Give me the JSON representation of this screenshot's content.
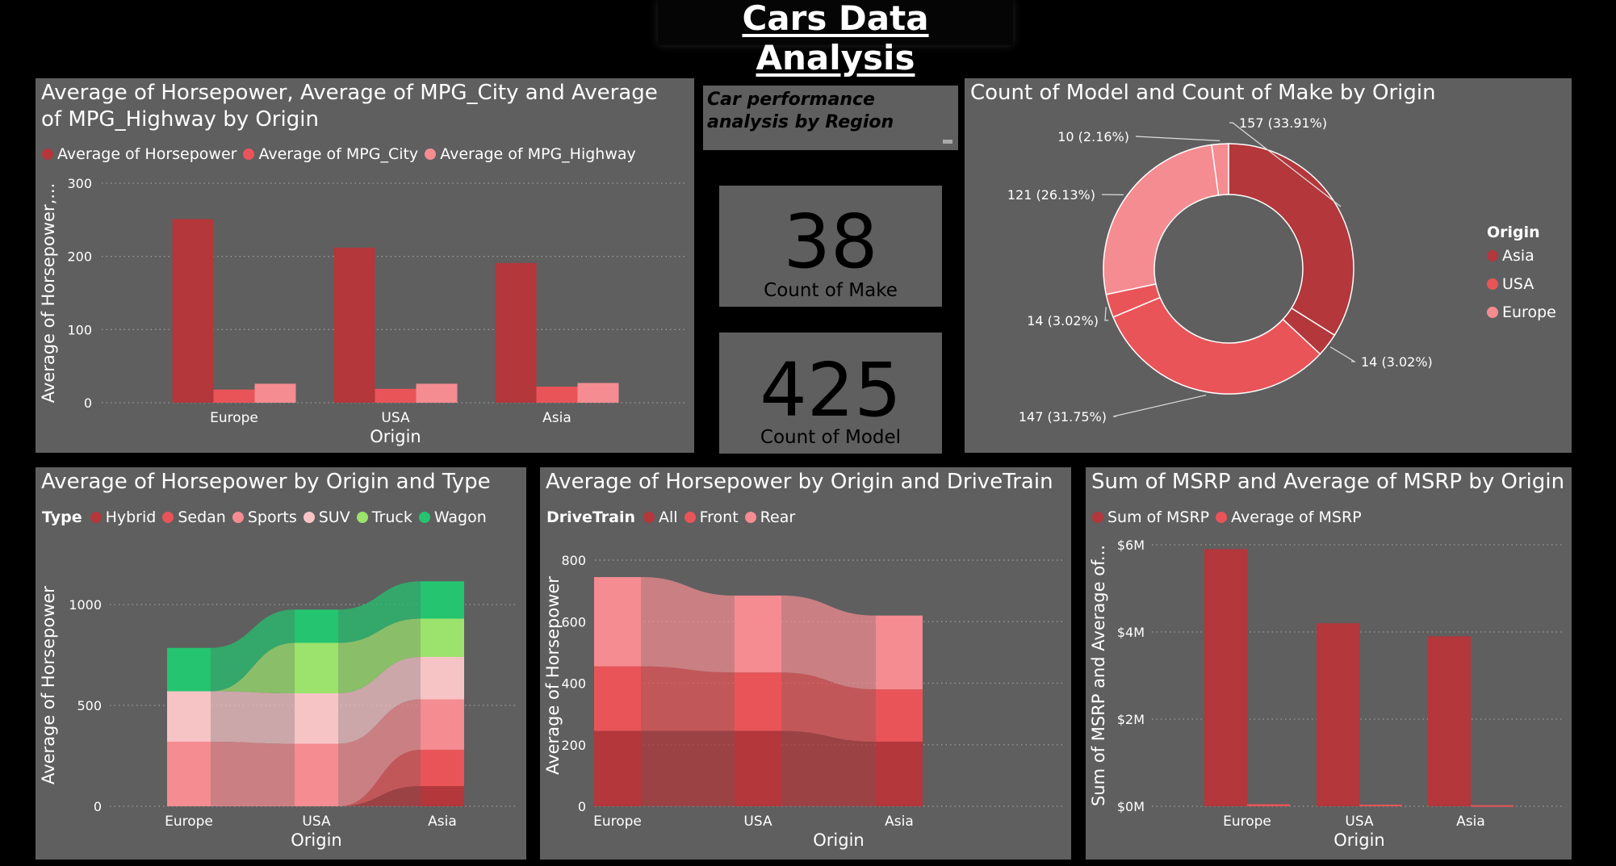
{
  "page_title": "Cars Data Analysis",
  "subtitle_text": "Car performance analysis by Region",
  "colors": {
    "dark_red": "#b3373b",
    "red": "#e95458",
    "pink": "#f48c91",
    "light_pink": "#f7c4c6",
    "light_green": "#9be36d",
    "green": "#24c470",
    "panel": "#5f5f5f"
  },
  "cards": {
    "make_value": "38",
    "make_label": "Count of Make",
    "model_value": "425",
    "model_label": "Count of Model"
  },
  "chart_data": [
    {
      "type": "bar",
      "title": "Average of Horsepower, Average of MPG_City and Average of MPG_Highway by Origin",
      "xlabel": "Origin",
      "ylabel": "Average of Horsepower,...",
      "categories": [
        "Europe",
        "USA",
        "Asia"
      ],
      "yticks": [
        "0",
        "100",
        "200",
        "300"
      ],
      "ylim": [
        0,
        300
      ],
      "series": [
        {
          "name": "Average of Horsepower",
          "values": [
            251,
            212,
            191
          ]
        },
        {
          "name": "Average of MPG_City",
          "values": [
            18,
            19,
            22
          ]
        },
        {
          "name": "Average of MPG_Highway",
          "values": [
            26,
            26,
            27
          ]
        }
      ],
      "legend": "top-left",
      "grid": true
    },
    {
      "type": "pie",
      "title": "Count of Model and Count of Make by Origin",
      "legend_title": "Origin",
      "legend": [
        "Asia",
        "USA",
        "Europe"
      ],
      "slices": [
        {
          "value": 157,
          "label": "157 (33.91%)"
        },
        {
          "value": 14,
          "label": "14 (3.02%)"
        },
        {
          "value": 147,
          "label": "147 (31.75%)"
        },
        {
          "value": 14,
          "label": "14 (3.02%)"
        },
        {
          "value": 121,
          "label": "121 (26.13%)"
        },
        {
          "value": 10,
          "label": "10 (2.16%)"
        }
      ]
    },
    {
      "type": "bar",
      "stacked": true,
      "title": "Average of Horsepower by Origin and Type",
      "xlabel": "Origin",
      "ylabel": "Average of Horsepower",
      "legend_title": "Type",
      "categories": [
        "Europe",
        "USA",
        "Asia"
      ],
      "yticks": [
        "0",
        "500",
        "1000"
      ],
      "ylim": [
        0,
        1200
      ],
      "series": [
        {
          "name": "Hybrid",
          "values": [
            0,
            0,
            100
          ]
        },
        {
          "name": "Sedan",
          "values": [
            0,
            0,
            180
          ]
        },
        {
          "name": "Sports",
          "values": [
            320,
            310,
            250
          ]
        },
        {
          "name": "SUV",
          "values": [
            250,
            250,
            210
          ]
        },
        {
          "name": "Truck",
          "values": [
            0,
            250,
            190
          ]
        },
        {
          "name": "Wagon",
          "values": [
            215,
            165,
            185
          ]
        }
      ],
      "grid": true
    },
    {
      "type": "bar",
      "stacked": true,
      "title": "Average of Horsepower by Origin and DriveTrain",
      "xlabel": "Origin",
      "ylabel": "Average of Horsepower",
      "legend_title": "DriveTrain",
      "categories": [
        "Europe",
        "USA",
        "Asia"
      ],
      "yticks": [
        "0",
        "200",
        "400",
        "600",
        "800"
      ],
      "ylim": [
        0,
        850
      ],
      "series": [
        {
          "name": "All",
          "values": [
            245,
            245,
            210
          ]
        },
        {
          "name": "Front",
          "values": [
            210,
            190,
            170
          ]
        },
        {
          "name": "Rear",
          "values": [
            290,
            250,
            240
          ]
        }
      ],
      "grid": true
    },
    {
      "type": "bar",
      "title": "Sum of MSRP and Average of MSRP by Origin",
      "xlabel": "Origin",
      "ylabel": "Sum of MSRP and Average of...",
      "categories": [
        "Europe",
        "USA",
        "Asia"
      ],
      "yticks": [
        "$0M",
        "$2M",
        "$4M",
        "$6M"
      ],
      "ylim": [
        0,
        6000000
      ],
      "series": [
        {
          "name": "Sum of MSRP",
          "values": [
            5900000,
            4200000,
            3900000
          ]
        },
        {
          "name": "Average of MSRP",
          "values": [
            48000,
            37000,
            25000
          ]
        }
      ],
      "grid": true
    }
  ]
}
